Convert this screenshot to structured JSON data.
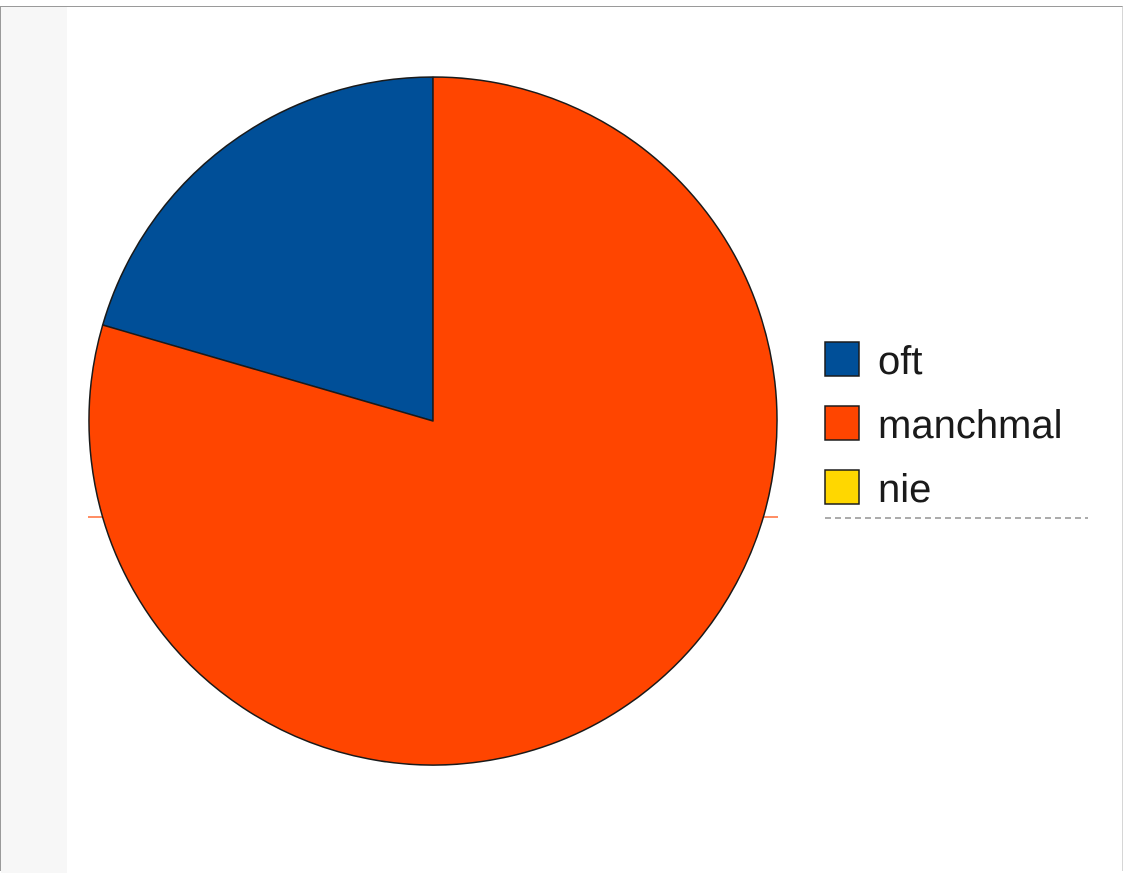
{
  "chart_data": {
    "type": "pie",
    "title": "",
    "categories": [
      "oft",
      "manchmal",
      "nie"
    ],
    "values": [
      20.5,
      79.5,
      0
    ],
    "colors": [
      "#004f98",
      "#ff4500",
      "#ffd700"
    ],
    "legend_position": "right",
    "start_angle_deg": 0,
    "direction": "counterclockwise-from-top"
  }
}
